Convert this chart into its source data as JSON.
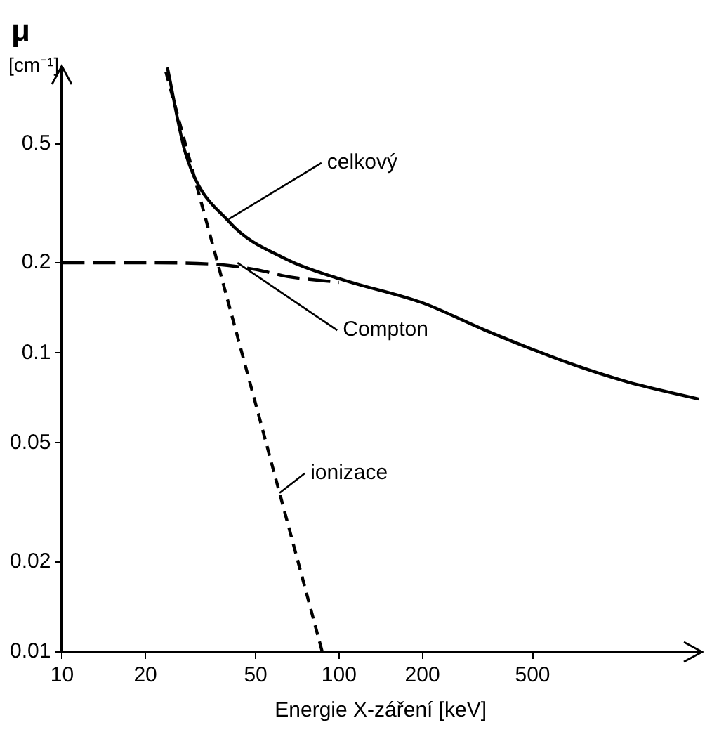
{
  "chart_data": {
    "type": "line",
    "xlabel": "Energie X-záření [keV]",
    "ylabel": "μ [cm⁻¹]",
    "log": "xy",
    "xlim": [
      10,
      2000
    ],
    "ylim": [
      0.01,
      0.9
    ],
    "xticks": [
      10,
      20,
      50,
      100,
      200,
      500
    ],
    "yticks": [
      0.01,
      0.02,
      0.05,
      0.1,
      0.2,
      0.5
    ],
    "grid": false,
    "legend": false,
    "marker": "none",
    "series": [
      {
        "color": "#000000",
        "line_style": "solid",
        "x": [
          24,
          28,
          40,
          65,
          100,
          200,
          337,
          686,
          1100,
          2000
        ],
        "values": [
          0.9,
          0.46,
          0.275,
          0.205,
          0.177,
          0.147,
          0.119,
          0.092,
          0.08,
          0.07
        ]
      },
      {
        "color": "#000000",
        "line_style": "dashed",
        "x": [
          10,
          20,
          35,
          50,
          65,
          100
        ],
        "values": [
          0.2,
          0.2,
          0.198,
          0.19,
          0.18,
          0.172
        ]
      },
      {
        "color": "#000000",
        "line_style": "dotted",
        "x": [
          23.7,
          45,
          87
        ],
        "values": [
          0.87,
          0.097,
          0.01
        ]
      }
    ],
    "annotations": [
      {
        "text": "celkový",
        "x": 40,
        "y": 0.28
      },
      {
        "text": "Compton",
        "x": 43,
        "y": 0.2
      },
      {
        "text": "ionizace",
        "x": 61,
        "y": 0.034
      }
    ]
  }
}
